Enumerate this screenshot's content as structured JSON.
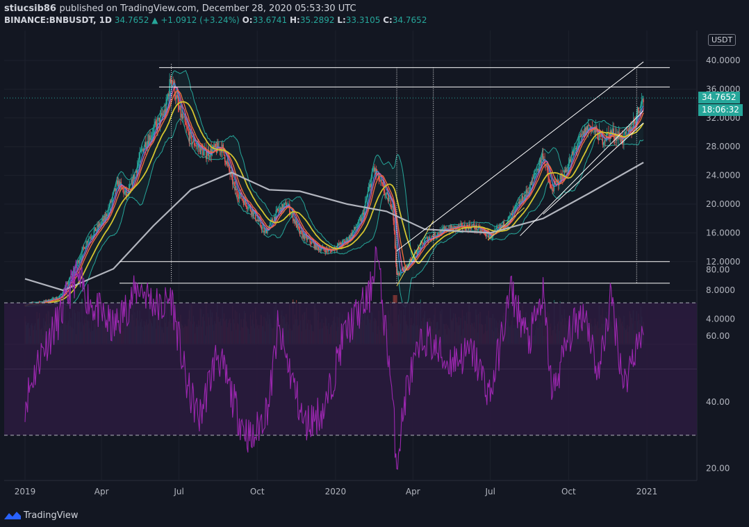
{
  "header": {
    "author": "stiucsib86",
    "publish_text": "published on TradingView.com, December 28, 2020 05:53:30 UTC",
    "symbol": "BINANCE:BNBUSDT, 1D",
    "last": "34.7652",
    "change": "▲ +1.0912 (+3.24%)",
    "o_label": "O:",
    "o_value": "33.6741",
    "h_label": "H:",
    "h_value": "35.2892",
    "l_label": "L:",
    "l_value": "33.3105",
    "c_label": "C:",
    "c_value": "34.7652"
  },
  "price_axis": {
    "currency": "USDT",
    "last_price_badge": "34.7652",
    "countdown_badge": "18:06:32"
  },
  "footer": {
    "brand": "TradingView"
  },
  "colors": {
    "background": "#131722",
    "up": "#26a69a",
    "down": "#ef5350",
    "bollinger": "#26a69a",
    "ma_yellow": "#d4c52f",
    "ma_orange": "#ef6c3a",
    "ma_pink": "#e05a9a",
    "ma_blue": "#3f8cd9",
    "ma_gray": "#b2b5be",
    "rsi": "#9c27b0",
    "rsi_band": "#2a1b3d"
  },
  "chart_data": [
    {
      "type": "candlestick",
      "title": "",
      "x_ticks": [
        "2019",
        "Apr",
        "Jul",
        "Oct",
        "2020",
        "Apr",
        "Jul",
        "Oct",
        "2021"
      ],
      "y_ticks": [
        "4.0000",
        "8.0000",
        "12.0000",
        "16.0000",
        "20.0000",
        "24.0000",
        "28.0000",
        "32.0000",
        "36.0000",
        "40.0000"
      ],
      "ylim": [
        0,
        42
      ],
      "price_path": [
        [
          "2019-01-01",
          6.0
        ],
        [
          "2019-01-20",
          6.3
        ],
        [
          "2019-02-10",
          7.0
        ],
        [
          "2019-02-25",
          10.0
        ],
        [
          "2019-03-15",
          15.0
        ],
        [
          "2019-04-05",
          18.0
        ],
        [
          "2019-04-20",
          23.0
        ],
        [
          "2019-05-01",
          21.0
        ],
        [
          "2019-05-20",
          28.0
        ],
        [
          "2019-06-05",
          31.0
        ],
        [
          "2019-06-15",
          33.0
        ],
        [
          "2019-06-22",
          38.0
        ],
        [
          "2019-07-01",
          33.0
        ],
        [
          "2019-07-15",
          29.0
        ],
        [
          "2019-08-01",
          27.0
        ],
        [
          "2019-08-20",
          28.0
        ],
        [
          "2019-09-05",
          22.0
        ],
        [
          "2019-09-25",
          19.0
        ],
        [
          "2019-10-10",
          16.0
        ],
        [
          "2019-10-25",
          19.0
        ],
        [
          "2019-11-05",
          20.0
        ],
        [
          "2019-11-20",
          16.0
        ],
        [
          "2019-12-10",
          14.0
        ],
        [
          "2019-12-25",
          13.5
        ],
        [
          "2020-01-15",
          15.0
        ],
        [
          "2020-02-01",
          18.0
        ],
        [
          "2020-02-15",
          25.0
        ],
        [
          "2020-03-01",
          21.0
        ],
        [
          "2020-03-08",
          20.0
        ],
        [
          "2020-03-13",
          10.0
        ],
        [
          "2020-03-25",
          11.5
        ],
        [
          "2020-04-15",
          15.0
        ],
        [
          "2020-05-10",
          16.5
        ],
        [
          "2020-06-10",
          17.0
        ],
        [
          "2020-07-01",
          15.5
        ],
        [
          "2020-07-20",
          17.5
        ],
        [
          "2020-08-15",
          22.0
        ],
        [
          "2020-09-01",
          27.0
        ],
        [
          "2020-09-10",
          22.0
        ],
        [
          "2020-09-25",
          24.0
        ],
        [
          "2020-10-10",
          28.0
        ],
        [
          "2020-10-25",
          31.0
        ],
        [
          "2020-11-10",
          29.0
        ],
        [
          "2020-11-20",
          30.0
        ],
        [
          "2020-12-05",
          29.0
        ],
        [
          "2020-12-15",
          31.0
        ],
        [
          "2020-12-28",
          34.7652
        ]
      ],
      "ma_200_path": [
        [
          "2019-01-01",
          9.6
        ],
        [
          "2019-02-15",
          8.0
        ],
        [
          "2019-04-15",
          11.0
        ],
        [
          "2019-06-01",
          17.0
        ],
        [
          "2019-07-15",
          22.0
        ],
        [
          "2019-09-01",
          24.4
        ],
        [
          "2019-10-15",
          22.0
        ],
        [
          "2019-11-20",
          21.8
        ],
        [
          "2020-01-15",
          20.0
        ],
        [
          "2020-03-01",
          19.0
        ],
        [
          "2020-04-15",
          16.5
        ],
        [
          "2020-07-01",
          16.0
        ],
        [
          "2020-09-01",
          18.0
        ],
        [
          "2020-10-25",
          21.5
        ],
        [
          "2020-12-28",
          25.8
        ]
      ],
      "horizontal_levels": [
        9.0,
        12.0,
        36.3,
        39.0
      ],
      "trend_lines": [
        {
          "from": [
            "2020-03-13",
            8.6
          ],
          "to": [
            "2020-04-25",
            17.7
          ],
          "color": "yellow"
        },
        {
          "from": [
            "2020-06-28",
            15.0
          ],
          "to": [
            "2020-08-10",
            19.5
          ],
          "color": "yellow"
        },
        {
          "from": [
            "2020-03-13",
            13.5
          ],
          "to": [
            "2020-12-28",
            39.8
          ],
          "color": "white"
        },
        {
          "from": [
            "2020-08-05",
            15.6
          ],
          "to": [
            "2020-12-28",
            33.0
          ],
          "color": "white"
        },
        {
          "from": [
            "2020-09-01",
            18.6
          ],
          "to": [
            "2020-12-28",
            31.3
          ],
          "color": "white"
        }
      ],
      "vertical_markers": [
        "2019-06-22",
        "2020-03-13",
        "2020-04-25",
        "2020-12-20"
      ]
    },
    {
      "type": "line",
      "title": "",
      "y_ticks": [
        "20.00",
        "40.00",
        "60.00",
        "80.00"
      ],
      "ylim": [
        15,
        95
      ],
      "overbought": 70,
      "oversold": 30,
      "rsi_path": [
        [
          "2019-01-01",
          40
        ],
        [
          "2019-01-20",
          55
        ],
        [
          "2019-02-10",
          65
        ],
        [
          "2019-03-01",
          78
        ],
        [
          "2019-03-20",
          70
        ],
        [
          "2019-04-15",
          62
        ],
        [
          "2019-05-15",
          75
        ],
        [
          "2019-06-10",
          68
        ],
        [
          "2019-06-22",
          72
        ],
        [
          "2019-07-10",
          45
        ],
        [
          "2019-07-25",
          35
        ],
        [
          "2019-08-15",
          55
        ],
        [
          "2019-09-10",
          35
        ],
        [
          "2019-09-25",
          28
        ],
        [
          "2019-10-15",
          40
        ],
        [
          "2019-10-25",
          62
        ],
        [
          "2019-11-10",
          48
        ],
        [
          "2019-11-25",
          33
        ],
        [
          "2019-12-20",
          38
        ],
        [
          "2020-01-10",
          60
        ],
        [
          "2020-02-10",
          72
        ],
        [
          "2020-02-18",
          86
        ],
        [
          "2020-03-05",
          50
        ],
        [
          "2020-03-13",
          22
        ],
        [
          "2020-03-25",
          45
        ],
        [
          "2020-04-15",
          60
        ],
        [
          "2020-05-10",
          52
        ],
        [
          "2020-06-10",
          55
        ],
        [
          "2020-07-01",
          42
        ],
        [
          "2020-07-25",
          74
        ],
        [
          "2020-08-15",
          58
        ],
        [
          "2020-09-01",
          72
        ],
        [
          "2020-09-12",
          42
        ],
        [
          "2020-10-01",
          60
        ],
        [
          "2020-10-20",
          68
        ],
        [
          "2020-11-05",
          48
        ],
        [
          "2020-11-20",
          72
        ],
        [
          "2020-12-05",
          45
        ],
        [
          "2020-12-20",
          58
        ],
        [
          "2020-12-28",
          62
        ]
      ]
    }
  ]
}
